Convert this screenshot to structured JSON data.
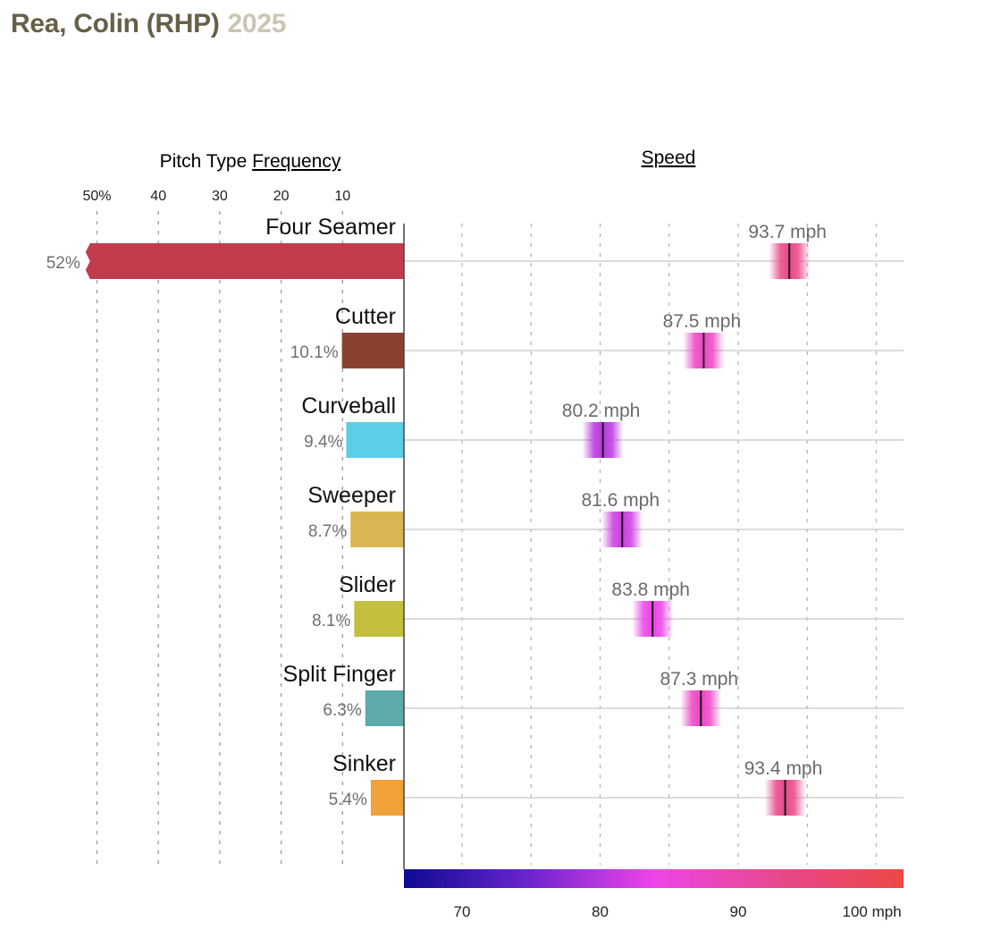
{
  "header": {
    "player": "Rea, Colin (RHP)",
    "year": "2025",
    "player_color": "#676048",
    "year_color": "#cbc5b4"
  },
  "chart_data": {
    "type": "bar",
    "frequency_header": {
      "prefix": "Pitch Type ",
      "link": "Frequency"
    },
    "speed_header": "Speed",
    "frequency_axis": {
      "ticks": [
        50,
        40,
        30,
        20,
        10
      ],
      "tick_labels": [
        "50%",
        "40",
        "30",
        "20",
        "10"
      ],
      "range": [
        0,
        52
      ]
    },
    "speed_axis": {
      "ticks": [
        70,
        80,
        90,
        100
      ],
      "tick_labels": [
        "70",
        "80",
        "90",
        "100 mph"
      ],
      "range": [
        66,
        102
      ],
      "gridlines": [
        70,
        75,
        80,
        85,
        90,
        95,
        100
      ]
    },
    "colorscale": [
      "#0c0b93",
      "#6d24cf",
      "#ee44e8",
      "#e8488c",
      "#ec4846"
    ],
    "pitches": [
      {
        "name": "Four Seamer",
        "frequency": 52,
        "frequency_label": "52%",
        "speed": 93.7,
        "speed_label": "93.7 mph",
        "color": "#c23c4e",
        "truncated": true
      },
      {
        "name": "Cutter",
        "frequency": 10.1,
        "frequency_label": "10.1%",
        "speed": 87.5,
        "speed_label": "87.5 mph",
        "color": "#8b4130",
        "truncated": false
      },
      {
        "name": "Curveball",
        "frequency": 9.4,
        "frequency_label": "9.4%",
        "speed": 80.2,
        "speed_label": "80.2 mph",
        "color": "#5dcee8",
        "truncated": false
      },
      {
        "name": "Sweeper",
        "frequency": 8.7,
        "frequency_label": "8.7%",
        "speed": 81.6,
        "speed_label": "81.6 mph",
        "color": "#d8b651",
        "truncated": false
      },
      {
        "name": "Slider",
        "frequency": 8.1,
        "frequency_label": "8.1%",
        "speed": 83.8,
        "speed_label": "83.8 mph",
        "color": "#c2c03e",
        "truncated": false
      },
      {
        "name": "Split Finger",
        "frequency": 6.3,
        "frequency_label": "6.3%",
        "speed": 87.3,
        "speed_label": "87.3 mph",
        "color": "#5daaaa",
        "truncated": false
      },
      {
        "name": "Sinker",
        "frequency": 5.4,
        "frequency_label": "5.4%",
        "speed": 93.4,
        "speed_label": "93.4 mph",
        "color": "#f0a13a",
        "truncated": false
      }
    ]
  }
}
